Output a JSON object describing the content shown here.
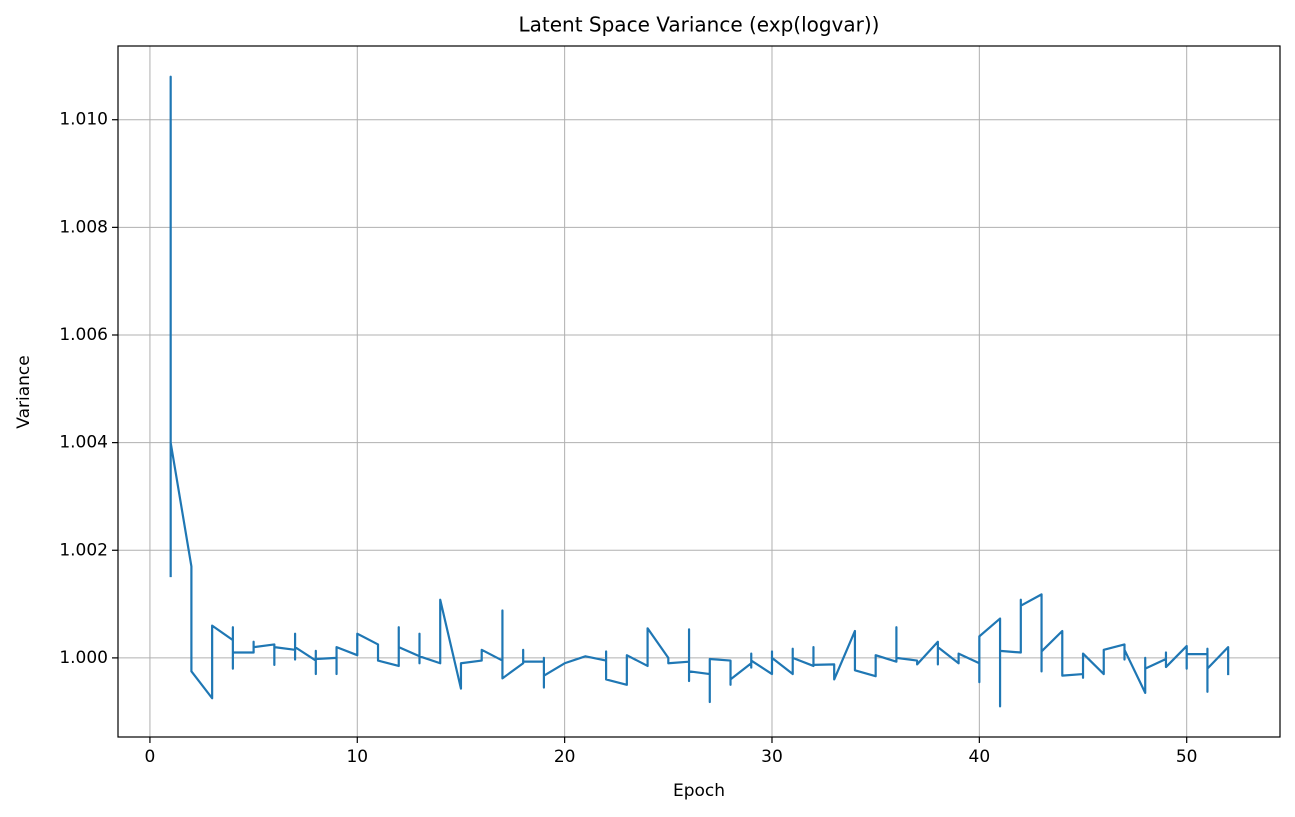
{
  "chart_data": {
    "type": "line",
    "title": "Latent Space Variance (exp(logvar))",
    "x_label": "Epoch",
    "y_label": "Variance",
    "x": [
      1,
      1,
      1,
      2,
      2,
      3,
      3,
      4,
      4,
      4,
      4,
      5,
      5,
      5,
      6,
      6,
      6,
      7,
      7,
      7,
      7,
      8,
      8,
      8,
      8,
      9,
      9,
      9,
      10,
      10,
      11,
      11,
      12,
      12,
      12,
      13,
      13,
      13,
      13,
      14,
      14,
      15,
      15,
      15,
      16,
      16,
      17,
      17,
      17,
      18,
      18,
      18,
      19,
      19,
      19,
      19,
      20,
      21,
      22,
      22,
      22,
      23,
      23,
      24,
      24,
      25,
      25,
      26,
      26,
      26,
      26,
      27,
      27,
      27,
      28,
      28,
      28,
      29,
      29,
      29,
      29,
      30,
      30,
      30,
      31,
      31,
      31,
      32,
      32,
      32,
      33,
      33,
      34,
      34,
      35,
      35,
      36,
      36,
      36,
      37,
      37,
      38,
      38,
      38,
      39,
      39,
      40,
      40,
      40,
      41,
      41,
      41,
      42,
      42,
      42,
      43,
      43,
      43,
      44,
      44,
      45,
      45,
      45,
      46,
      46,
      47,
      47,
      47,
      48,
      48,
      48,
      49,
      49,
      49,
      50,
      50,
      50,
      51,
      51,
      51,
      51,
      52,
      52
    ],
    "series": [
      {
        "color": "#1f77b4",
        "values": [
          1.0015,
          1.0108,
          1.004,
          1.0017,
          0.99975,
          0.99925,
          1.0006,
          1.00033,
          1.00057,
          0.9998,
          1.0001,
          1.0001,
          1.0003,
          1.0002,
          1.00025,
          0.99987,
          1.0002,
          1.00015,
          1.00045,
          0.99997,
          1.0002,
          0.99995,
          1.00013,
          0.9997,
          0.99998,
          1.0,
          0.9997,
          1.0002,
          1.00005,
          1.00045,
          1.00025,
          0.99995,
          0.99985,
          1.00057,
          1.0002,
          1.00003,
          1.00045,
          0.9999,
          1.00003,
          0.9999,
          1.00108,
          0.99943,
          0.99975,
          0.9999,
          0.99995,
          1.00015,
          0.99995,
          1.00088,
          0.99962,
          0.9999,
          1.00015,
          0.99993,
          0.99993,
          0.99945,
          1.0,
          0.99967,
          0.9999,
          1.00003,
          0.99995,
          1.00012,
          0.9996,
          0.9995,
          1.00005,
          0.99985,
          1.00055,
          1.0,
          0.9999,
          0.99993,
          0.99957,
          1.00053,
          0.99975,
          0.9997,
          0.99918,
          0.99998,
          0.99995,
          0.9995,
          0.9996,
          0.9999,
          1.00008,
          0.99982,
          0.99995,
          0.9997,
          1.00012,
          1.0,
          0.9997,
          1.00017,
          1.0,
          0.99985,
          1.0002,
          0.99987,
          0.99988,
          0.9996,
          1.0005,
          0.99977,
          0.99966,
          1.00005,
          0.99993,
          1.00057,
          1.0,
          0.99995,
          0.99988,
          1.0003,
          0.99988,
          1.0002,
          0.9999,
          1.00008,
          0.9999,
          0.99955,
          1.0004,
          1.00073,
          0.9991,
          1.00013,
          1.0001,
          1.00108,
          1.00097,
          1.00118,
          0.99975,
          1.00012,
          1.0005,
          0.99967,
          0.9997,
          0.99963,
          1.00008,
          0.9997,
          1.00015,
          1.00025,
          0.99997,
          1.00015,
          0.99935,
          1.0,
          0.9998,
          0.99998,
          1.0001,
          0.99983,
          1.00022,
          0.9998,
          1.00007,
          1.00007,
          0.99937,
          1.00017,
          0.9998,
          1.0002,
          0.99968
        ]
      }
    ],
    "xlim": [
      -1.54,
      54.5
    ],
    "ylim": [
      0.99853,
      1.01137
    ],
    "xticks": [
      0,
      10,
      20,
      30,
      40,
      50
    ],
    "yticks": [
      {
        "value": 1.0,
        "label": "1.000"
      },
      1.002,
      1.004,
      1.006,
      1.008,
      {
        "value": 1.01,
        "label": "1.010"
      }
    ],
    "grid": true
  }
}
